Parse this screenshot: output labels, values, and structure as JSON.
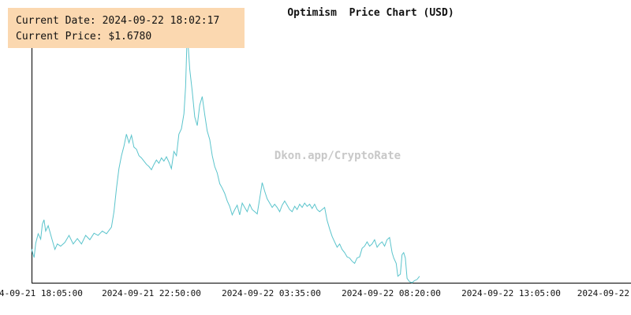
{
  "header": {
    "title": "Optimism  Price Chart (USD)",
    "watermark": "Dkon.app/CryptoRate"
  },
  "info_box": {
    "date_label": "Current Date: 2024-09-22 18:02:17",
    "price_label": "Current Price: $1.6780"
  },
  "colors": {
    "line": "#5bc4cc",
    "axis": "#000000",
    "info_bg": "#fbd8b0",
    "watermark": "#c8c8c8"
  },
  "chart_data": {
    "type": "line",
    "title": "Optimism  Price Chart (USD)",
    "xlabel": "",
    "ylabel": "",
    "grid": false,
    "x_tick_labels": [
      "2024-09-21 18:05:00",
      "2024-09-21 22:50:00",
      "2024-09-22 03:35:00",
      "2024-09-22 08:20:00",
      "2024-09-22 13:05:00",
      "2024-09-22"
    ],
    "x_range_minutes": [
      0,
      1440
    ],
    "ylim": [
      1.6713,
      1.9054
    ],
    "series": [
      {
        "points": [
          [
            0,
            1.7035
          ],
          [
            6,
            1.6954
          ],
          [
            10,
            1.7087
          ],
          [
            16,
            1.7175
          ],
          [
            22,
            1.7125
          ],
          [
            26,
            1.7263
          ],
          [
            30,
            1.7305
          ],
          [
            34,
            1.72
          ],
          [
            40,
            1.725
          ],
          [
            48,
            1.714
          ],
          [
            56,
            1.703
          ],
          [
            62,
            1.708
          ],
          [
            70,
            1.706
          ],
          [
            80,
            1.7094
          ],
          [
            90,
            1.716
          ],
          [
            100,
            1.708
          ],
          [
            110,
            1.713
          ],
          [
            120,
            1.708
          ],
          [
            130,
            1.716
          ],
          [
            140,
            1.712
          ],
          [
            150,
            1.718
          ],
          [
            160,
            1.716
          ],
          [
            170,
            1.72
          ],
          [
            180,
            1.7175
          ],
          [
            192,
            1.7237
          ],
          [
            198,
            1.738
          ],
          [
            204,
            1.76
          ],
          [
            210,
            1.778
          ],
          [
            216,
            1.79
          ],
          [
            222,
            1.799
          ],
          [
            228,
            1.81
          ],
          [
            234,
            1.802
          ],
          [
            240,
            1.809
          ],
          [
            246,
            1.798
          ],
          [
            252,
            1.796
          ],
          [
            258,
            1.79
          ],
          [
            264,
            1.788
          ],
          [
            270,
            1.785
          ],
          [
            276,
            1.782
          ],
          [
            282,
            1.78
          ],
          [
            288,
            1.777
          ],
          [
            294,
            1.782
          ],
          [
            300,
            1.786
          ],
          [
            306,
            1.783
          ],
          [
            312,
            1.788
          ],
          [
            318,
            1.785
          ],
          [
            324,
            1.789
          ],
          [
            330,
            1.784
          ],
          [
            336,
            1.778
          ],
          [
            342,
            1.794
          ],
          [
            348,
            1.79
          ],
          [
            354,
            1.81
          ],
          [
            360,
            1.815
          ],
          [
            366,
            1.829
          ],
          [
            370,
            1.854
          ],
          [
            374,
            1.9054
          ],
          [
            380,
            1.87
          ],
          [
            386,
            1.85
          ],
          [
            392,
            1.826
          ],
          [
            398,
            1.818
          ],
          [
            404,
            1.837
          ],
          [
            410,
            1.845
          ],
          [
            416,
            1.828
          ],
          [
            422,
            1.813
          ],
          [
            428,
            1.805
          ],
          [
            434,
            1.79
          ],
          [
            440,
            1.78
          ],
          [
            446,
            1.774
          ],
          [
            452,
            1.764
          ],
          [
            458,
            1.76
          ],
          [
            464,
            1.755
          ],
          [
            470,
            1.748
          ],
          [
            476,
            1.743
          ],
          [
            482,
            1.735
          ],
          [
            488,
            1.74
          ],
          [
            494,
            1.744
          ],
          [
            500,
            1.735
          ],
          [
            506,
            1.746
          ],
          [
            512,
            1.742
          ],
          [
            518,
            1.738
          ],
          [
            524,
            1.745
          ],
          [
            530,
            1.74
          ],
          [
            536,
            1.738
          ],
          [
            542,
            1.736
          ],
          [
            548,
            1.75
          ],
          [
            554,
            1.765
          ],
          [
            560,
            1.757
          ],
          [
            566,
            1.75
          ],
          [
            572,
            1.746
          ],
          [
            578,
            1.742
          ],
          [
            584,
            1.745
          ],
          [
            590,
            1.742
          ],
          [
            596,
            1.738
          ],
          [
            602,
            1.744
          ],
          [
            608,
            1.748
          ],
          [
            614,
            1.744
          ],
          [
            620,
            1.74
          ],
          [
            626,
            1.738
          ],
          [
            632,
            1.743
          ],
          [
            638,
            1.74
          ],
          [
            644,
            1.745
          ],
          [
            650,
            1.742
          ],
          [
            656,
            1.746
          ],
          [
            662,
            1.743
          ],
          [
            668,
            1.745
          ],
          [
            674,
            1.741
          ],
          [
            680,
            1.745
          ],
          [
            686,
            1.74
          ],
          [
            692,
            1.738
          ],
          [
            698,
            1.74
          ],
          [
            704,
            1.742
          ],
          [
            710,
            1.73
          ],
          [
            716,
            1.722
          ],
          [
            722,
            1.715
          ],
          [
            728,
            1.71
          ],
          [
            734,
            1.705
          ],
          [
            740,
            1.708
          ],
          [
            746,
            1.703
          ],
          [
            752,
            1.7
          ],
          [
            758,
            1.696
          ],
          [
            764,
            1.695
          ],
          [
            770,
            1.692
          ],
          [
            776,
            1.69
          ],
          [
            782,
            1.695
          ],
          [
            788,
            1.696
          ],
          [
            794,
            1.704
          ],
          [
            800,
            1.706
          ],
          [
            806,
            1.71
          ],
          [
            812,
            1.706
          ],
          [
            818,
            1.708
          ],
          [
            824,
            1.712
          ],
          [
            830,
            1.705
          ],
          [
            836,
            1.708
          ],
          [
            842,
            1.71
          ],
          [
            848,
            1.706
          ],
          [
            854,
            1.712
          ],
          [
            860,
            1.714
          ],
          [
            866,
            1.7
          ],
          [
            870,
            1.695
          ],
          [
            876,
            1.69
          ],
          [
            880,
            1.678
          ],
          [
            886,
            1.68
          ],
          [
            890,
            1.698
          ],
          [
            894,
            1.7
          ],
          [
            898,
            1.695
          ],
          [
            902,
            1.676
          ],
          [
            908,
            1.673
          ],
          [
            914,
            1.672
          ],
          [
            920,
            1.674
          ],
          [
            926,
            1.675
          ],
          [
            932,
            1.678
          ]
        ]
      }
    ]
  }
}
